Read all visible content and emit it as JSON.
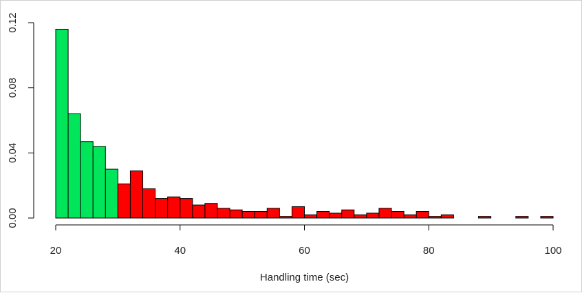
{
  "chart_data": {
    "type": "bar",
    "title": "",
    "xlabel": "Handling time (sec)",
    "ylabel": "",
    "xlim": [
      20,
      100
    ],
    "ylim": [
      0,
      0.12
    ],
    "x_ticks": [
      "20",
      "40",
      "60",
      "80",
      "100"
    ],
    "y_ticks": [
      "0.00",
      "0.04",
      "0.08",
      "0.12"
    ],
    "grid": false,
    "legend": "none",
    "bin_width": 2,
    "bins": [
      {
        "x0": 20,
        "x1": 22,
        "density": 0.116,
        "group": "green"
      },
      {
        "x0": 22,
        "x1": 24,
        "density": 0.064,
        "group": "green"
      },
      {
        "x0": 24,
        "x1": 26,
        "density": 0.047,
        "group": "green"
      },
      {
        "x0": 26,
        "x1": 28,
        "density": 0.044,
        "group": "green"
      },
      {
        "x0": 28,
        "x1": 30,
        "density": 0.03,
        "group": "green"
      },
      {
        "x0": 30,
        "x1": 32,
        "density": 0.021,
        "group": "red"
      },
      {
        "x0": 32,
        "x1": 34,
        "density": 0.029,
        "group": "red"
      },
      {
        "x0": 34,
        "x1": 36,
        "density": 0.018,
        "group": "red"
      },
      {
        "x0": 36,
        "x1": 38,
        "density": 0.012,
        "group": "red"
      },
      {
        "x0": 38,
        "x1": 40,
        "density": 0.013,
        "group": "red"
      },
      {
        "x0": 40,
        "x1": 42,
        "density": 0.012,
        "group": "red"
      },
      {
        "x0": 42,
        "x1": 44,
        "density": 0.008,
        "group": "red"
      },
      {
        "x0": 44,
        "x1": 46,
        "density": 0.009,
        "group": "red"
      },
      {
        "x0": 46,
        "x1": 48,
        "density": 0.006,
        "group": "red"
      },
      {
        "x0": 48,
        "x1": 50,
        "density": 0.005,
        "group": "red"
      },
      {
        "x0": 50,
        "x1": 52,
        "density": 0.004,
        "group": "red"
      },
      {
        "x0": 52,
        "x1": 54,
        "density": 0.004,
        "group": "red"
      },
      {
        "x0": 54,
        "x1": 56,
        "density": 0.006,
        "group": "red"
      },
      {
        "x0": 56,
        "x1": 58,
        "density": 0.001,
        "group": "red"
      },
      {
        "x0": 58,
        "x1": 60,
        "density": 0.007,
        "group": "red"
      },
      {
        "x0": 60,
        "x1": 62,
        "density": 0.002,
        "group": "red"
      },
      {
        "x0": 62,
        "x1": 64,
        "density": 0.004,
        "group": "red"
      },
      {
        "x0": 64,
        "x1": 66,
        "density": 0.003,
        "group": "red"
      },
      {
        "x0": 66,
        "x1": 68,
        "density": 0.005,
        "group": "red"
      },
      {
        "x0": 68,
        "x1": 70,
        "density": 0.002,
        "group": "red"
      },
      {
        "x0": 70,
        "x1": 72,
        "density": 0.003,
        "group": "red"
      },
      {
        "x0": 72,
        "x1": 74,
        "density": 0.006,
        "group": "red"
      },
      {
        "x0": 74,
        "x1": 76,
        "density": 0.004,
        "group": "red"
      },
      {
        "x0": 76,
        "x1": 78,
        "density": 0.002,
        "group": "red"
      },
      {
        "x0": 78,
        "x1": 80,
        "density": 0.004,
        "group": "red"
      },
      {
        "x0": 80,
        "x1": 82,
        "density": 0.001,
        "group": "red"
      },
      {
        "x0": 82,
        "x1": 84,
        "density": 0.002,
        "group": "red"
      },
      {
        "x0": 84,
        "x1": 86,
        "density": 0.0,
        "group": "red"
      },
      {
        "x0": 86,
        "x1": 88,
        "density": 0.0,
        "group": "red"
      },
      {
        "x0": 88,
        "x1": 90,
        "density": 0.001,
        "group": "red"
      },
      {
        "x0": 90,
        "x1": 92,
        "density": 0.0,
        "group": "red"
      },
      {
        "x0": 92,
        "x1": 94,
        "density": 0.0,
        "group": "red"
      },
      {
        "x0": 94,
        "x1": 96,
        "density": 0.001,
        "group": "red"
      },
      {
        "x0": 96,
        "x1": 98,
        "density": 0.0,
        "group": "red"
      },
      {
        "x0": 98,
        "x1": 100,
        "density": 0.001,
        "group": "red"
      }
    ],
    "colors": {
      "green": "#00e55a",
      "red": "#ff0000",
      "outline": "#000000"
    }
  }
}
